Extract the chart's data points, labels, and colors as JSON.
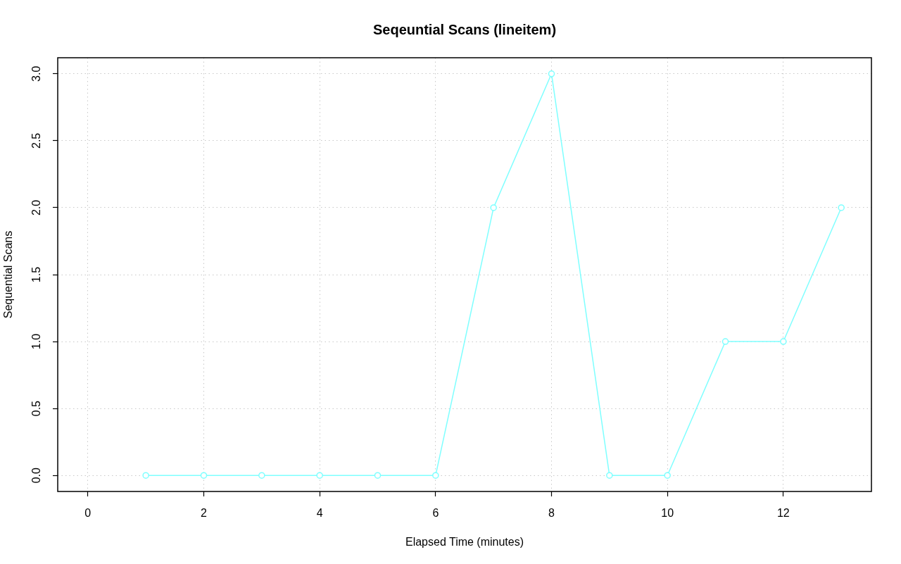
{
  "chart_data": {
    "type": "line",
    "title": "Seqeuntial Scans (lineitem)",
    "xlabel": "Elapsed Time (minutes)",
    "ylabel": "Sequential Scans",
    "x": [
      1,
      2,
      3,
      4,
      5,
      6,
      7,
      8,
      9,
      10,
      11,
      12,
      13
    ],
    "series": [
      {
        "color": "#7fffff",
        "values": [
          0,
          0,
          0,
          0,
          0,
          0,
          2,
          3,
          0,
          0,
          1,
          1,
          2
        ]
      }
    ],
    "xlim": [
      -0.52,
      13.52
    ],
    "ylim": [
      -0.12,
      3.12
    ],
    "xticks": [
      0,
      2,
      4,
      6,
      8,
      10,
      12
    ],
    "yticks": [
      {
        "value": 0,
        "label": "0.0"
      },
      0.5,
      {
        "value": 1,
        "label": "1.0"
      },
      1.5,
      {
        "value": 2,
        "label": "2.0"
      },
      2.5,
      {
        "value": 3,
        "label": "3.0"
      }
    ],
    "grid": true,
    "marker": "circle",
    "line_style": "solid"
  }
}
